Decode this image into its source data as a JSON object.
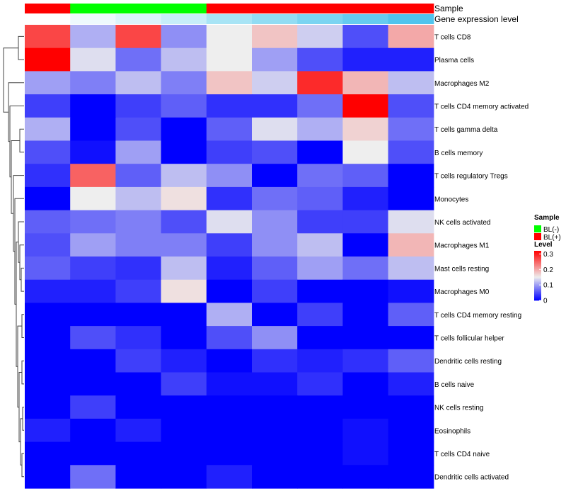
{
  "chart_data": {
    "type": "heatmap",
    "annotation_tracks": [
      {
        "name": "Sample",
        "values": [
          "BL(+)",
          "BL(-)",
          "BL(-)",
          "BL(-)",
          "BL(+)",
          "BL(+)",
          "BL(+)",
          "BL(+)",
          "BL(+)"
        ]
      },
      {
        "name": "Gene expression level",
        "values": [
          0.0,
          0.04,
          0.08,
          0.12,
          0.32,
          0.42,
          0.62,
          0.78,
          0.95
        ],
        "colors": [
          "#ffffff",
          "#eef9fd",
          "#dbf4fb",
          "#c7eef9",
          "#a8e4f5",
          "#92dcf3",
          "#7bd4f1",
          "#66ccef",
          "#51c4ed"
        ]
      }
    ],
    "rows": [
      "T cells CD8",
      "Plasma cells",
      "Macrophages M2",
      "T cells CD4 memory activated",
      "T cells gamma delta",
      "B cells memory",
      "T cells regulatory  Tregs",
      "Monocytes",
      "NK cells activated",
      "Macrophages M1",
      "Mast cells resting",
      "Macrophages M0",
      "T cells CD4 memory resting",
      "T cells follicular helper",
      "Dendritic cells resting",
      "B cells naive",
      "NK cells resting",
      "Eosinophils",
      "T cells CD4 naive",
      "Dendritic cells activated"
    ],
    "values": [
      [
        0.27,
        0.11,
        0.27,
        0.09,
        0.15,
        0.18,
        0.13,
        0.05,
        0.2
      ],
      [
        0.32,
        0.14,
        0.07,
        0.12,
        0.15,
        0.1,
        0.05,
        0.02,
        0.02
      ],
      [
        0.1,
        0.08,
        0.12,
        0.08,
        0.18,
        0.13,
        0.29,
        0.19,
        0.12
      ],
      [
        0.04,
        0.0,
        0.04,
        0.06,
        0.03,
        0.03,
        0.07,
        0.32,
        0.05
      ],
      [
        0.11,
        0.0,
        0.05,
        0.0,
        0.06,
        0.14,
        0.11,
        0.17,
        0.07
      ],
      [
        0.05,
        0.01,
        0.1,
        0.0,
        0.04,
        0.05,
        0.0,
        0.15,
        0.05
      ],
      [
        0.03,
        0.25,
        0.06,
        0.12,
        0.09,
        0.0,
        0.07,
        0.06,
        0.0
      ],
      [
        0.0,
        0.15,
        0.12,
        0.16,
        0.03,
        0.07,
        0.06,
        0.02,
        0.0
      ],
      [
        0.06,
        0.07,
        0.08,
        0.05,
        0.14,
        0.09,
        0.04,
        0.04,
        0.14
      ],
      [
        0.05,
        0.1,
        0.08,
        0.08,
        0.04,
        0.09,
        0.12,
        0.0,
        0.19
      ],
      [
        0.06,
        0.04,
        0.03,
        0.12,
        0.02,
        0.06,
        0.1,
        0.07,
        0.12
      ],
      [
        0.02,
        0.02,
        0.04,
        0.16,
        0.0,
        0.04,
        0.0,
        0.0,
        0.01
      ],
      [
        0.0,
        0.0,
        0.0,
        0.0,
        0.11,
        0.0,
        0.04,
        0.0,
        0.06
      ],
      [
        0.0,
        0.05,
        0.03,
        0.0,
        0.05,
        0.09,
        0.0,
        0.0,
        0.0
      ],
      [
        0.0,
        0.0,
        0.04,
        0.02,
        0.0,
        0.03,
        0.02,
        0.03,
        0.06
      ],
      [
        0.0,
        0.0,
        0.0,
        0.04,
        0.01,
        0.01,
        0.03,
        0.0,
        0.02
      ],
      [
        0.0,
        0.04,
        0.0,
        0.0,
        0.0,
        0.0,
        0.0,
        0.0,
        0.0
      ],
      [
        0.02,
        0.0,
        0.02,
        0.0,
        0.0,
        0.0,
        0.0,
        0.01,
        0.0
      ],
      [
        0.0,
        0.0,
        0.0,
        0.0,
        0.0,
        0.0,
        0.0,
        0.01,
        0.0
      ],
      [
        0.0,
        0.07,
        0.0,
        0.0,
        0.02,
        0.0,
        0.0,
        0.0,
        0.0
      ]
    ],
    "color_scale": {
      "name": "Level",
      "stops": [
        {
          "value": 0,
          "color": "#0000ff"
        },
        {
          "value": 0.15,
          "color": "#eeeeee"
        },
        {
          "value": 0.32,
          "color": "#ff0000"
        }
      ],
      "ticks": [
        0.3,
        0.2,
        0.1,
        0
      ],
      "tick_labels": [
        "0.3",
        "0.2",
        "0.1",
        "0"
      ]
    },
    "legends": {
      "sample": {
        "title": "Sample",
        "entries": [
          {
            "label": "BL(-)",
            "color": "#00ff00"
          },
          {
            "label": "BL(+)",
            "color": "#ff0000"
          }
        ]
      }
    },
    "dendrogram": "row"
  }
}
